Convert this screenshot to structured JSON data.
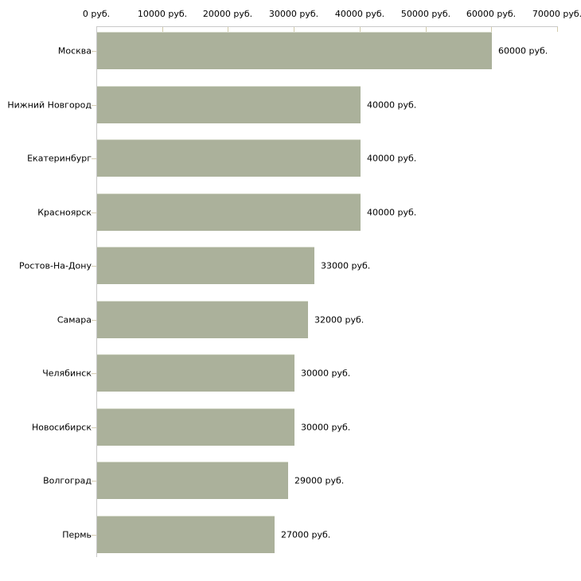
{
  "chart_data": {
    "type": "bar",
    "orientation": "horizontal",
    "title": "",
    "categories": [
      "Москва",
      "Нижний Новгород",
      "Екатеринбург",
      "Красноярск",
      "Ростов-На-Дону",
      "Самара",
      "Челябинск",
      "Новосибирск",
      "Волгоград",
      "Пермь"
    ],
    "values": [
      60000,
      40000,
      40000,
      40000,
      33000,
      32000,
      30000,
      30000,
      29000,
      27000
    ],
    "bar_value_labels": [
      "60000 руб.",
      "40000 руб.",
      "40000 руб.",
      "40000 руб.",
      "33000 руб.",
      "32000 руб.",
      "30000 руб.",
      "30000 руб.",
      "29000 руб.",
      "27000 руб."
    ],
    "unit": "руб.",
    "x_axis": {
      "position": "top",
      "min": 0,
      "max": 70000,
      "tick_values": [
        0,
        10000,
        20000,
        30000,
        40000,
        50000,
        60000,
        70000
      ],
      "tick_labels": [
        "0 руб.",
        "10000 руб.",
        "20000 руб.",
        "30000 руб.",
        "40000 руб.",
        "50000 руб.",
        "60000 руб.",
        "70000 руб."
      ]
    },
    "legend": false,
    "grid": false,
    "colors": {
      "background": "#ffffff",
      "bar": "#abb19b",
      "bar_top_edge": "#d6dacb",
      "axis_line": "#c9c9c9",
      "x_tick_mark": "#d2cbab",
      "y_tick_mark": "#d5ccb2",
      "label_text": "#000000"
    }
  }
}
